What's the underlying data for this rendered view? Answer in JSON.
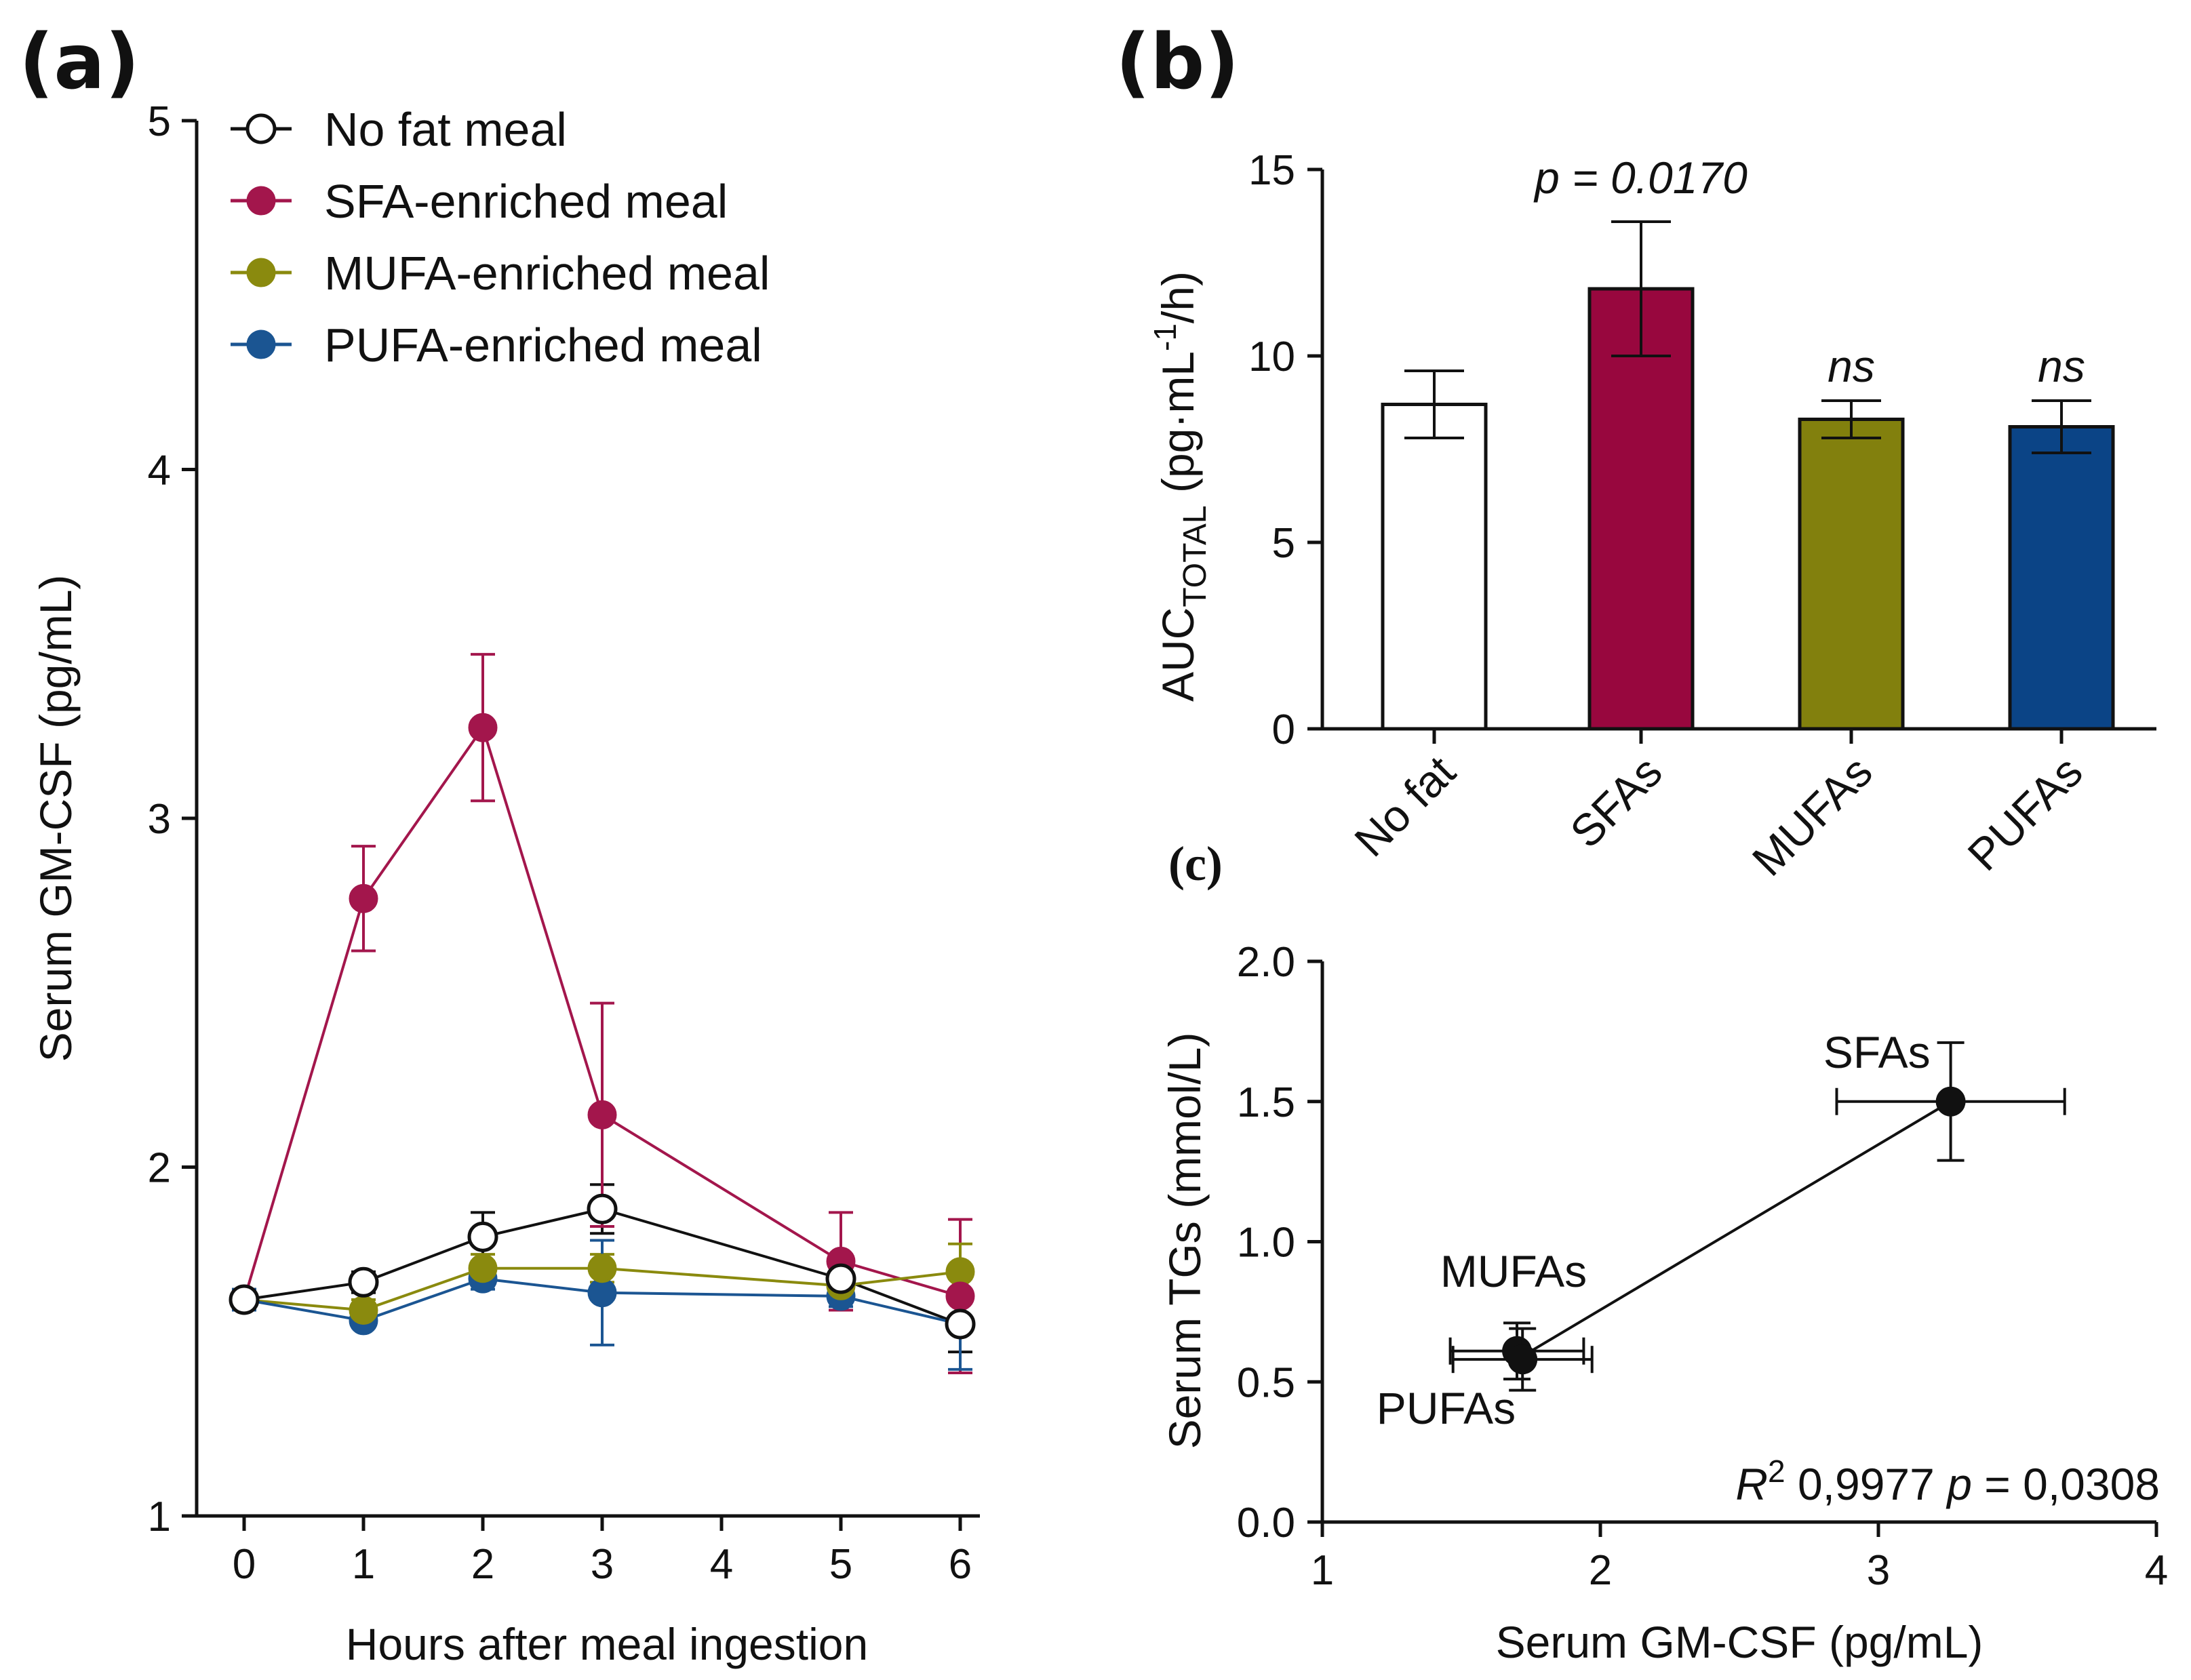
{
  "panels": {
    "a": {
      "letter": "(a)"
    },
    "b": {
      "letter": "(b)"
    },
    "c": {
      "letter": "(c)"
    }
  },
  "chart_data": [
    {
      "panel": "a",
      "type": "line",
      "title": "",
      "xlabel": "Hours after meal ingestion",
      "ylabel": "Serum GM-CSF (pg/mL)",
      "x": [
        0,
        1,
        2,
        3,
        5,
        6
      ],
      "xticks": [
        "0",
        "1",
        "2",
        "3",
        "4",
        "5",
        "6"
      ],
      "xlim": [
        -0.5,
        6.5
      ],
      "ylim": [
        1,
        5
      ],
      "yticks": [
        "1",
        "2",
        "3",
        "4",
        "5"
      ],
      "legend_position": "top-left",
      "series": [
        {
          "name": "No fat meal",
          "color": "#111111",
          "marker": "open-circle",
          "values": [
            1.62,
            1.67,
            1.8,
            1.88,
            1.68,
            1.55
          ],
          "errors": [
            0.03,
            0.03,
            0.07,
            0.07,
            0.04,
            0.08
          ]
        },
        {
          "name": "SFA-enriched meal",
          "color": "#A3164C",
          "marker": "filled-circle",
          "values": [
            1.62,
            2.77,
            3.26,
            2.15,
            1.73,
            1.63
          ],
          "errors": [
            0.03,
            0.15,
            0.21,
            0.32,
            0.14,
            0.22
          ]
        },
        {
          "name": "MUFA-enriched meal",
          "color": "#8A8A0E",
          "marker": "filled-circle",
          "values": [
            1.62,
            1.59,
            1.71,
            1.71,
            1.66,
            1.7
          ],
          "errors": [
            0.03,
            0.03,
            0.04,
            0.04,
            0.03,
            0.08
          ]
        },
        {
          "name": "PUFA-enriched meal",
          "color": "#1B5592",
          "marker": "filled-circle",
          "values": [
            1.62,
            1.56,
            1.68,
            1.64,
            1.63,
            1.55
          ],
          "errors": [
            0.03,
            0.02,
            0.03,
            0.15,
            0.03,
            0.13
          ]
        }
      ]
    },
    {
      "panel": "b",
      "type": "bar",
      "title": "",
      "xlabel": "",
      "ylabel_main": "AUC",
      "ylabel_subscript": "TOTAL",
      "ylabel_rest": " (pg·mL",
      "ylabel_superscript": "-1",
      "ylabel_end": "/h)",
      "categories": [
        "No fat",
        "SFAs",
        "MUFAs",
        "PUFAs"
      ],
      "values": [
        8.7,
        11.8,
        8.3,
        8.1
      ],
      "errors": [
        0.9,
        1.8,
        0.5,
        0.7
      ],
      "colors": [
        "#FFFFFF",
        "#98073E",
        "#82800D",
        "#0B4486"
      ],
      "ylim": [
        0,
        15
      ],
      "yticks": [
        "0",
        "5",
        "10",
        "15"
      ],
      "annotations": [
        "",
        "p = 0.0170",
        "ns",
        "ns"
      ]
    },
    {
      "panel": "c",
      "type": "scatter",
      "title": "",
      "xlabel": "Serum GM-CSF (pg/mL)",
      "ylabel": "Serum TGs (mmol/L)",
      "xlim": [
        1,
        4
      ],
      "ylim": [
        0,
        2
      ],
      "xticks": [
        "1",
        "2",
        "3",
        "4"
      ],
      "yticks": [
        "0.0",
        "0.5",
        "1.0",
        "1.5",
        "2.0"
      ],
      "points": [
        {
          "label": "MUFAs",
          "x": 1.7,
          "y": 0.61,
          "xerr": 0.24,
          "yerr": 0.1
        },
        {
          "label": "PUFAs",
          "x": 1.72,
          "y": 0.58,
          "xerr": 0.25,
          "yerr": 0.11
        },
        {
          "label": "SFAs",
          "x": 3.26,
          "y": 1.5,
          "xerr": 0.41,
          "yerr": 0.21
        }
      ],
      "fit_line": {
        "x": [
          1.7,
          3.26
        ],
        "y": [
          0.58,
          1.5
        ]
      },
      "stats": {
        "r2_label": "R",
        "r2_superscript": "2",
        "r2_value": " 0,9977 ",
        "p_label": "p",
        "p_value": " = 0,0308"
      }
    }
  ]
}
